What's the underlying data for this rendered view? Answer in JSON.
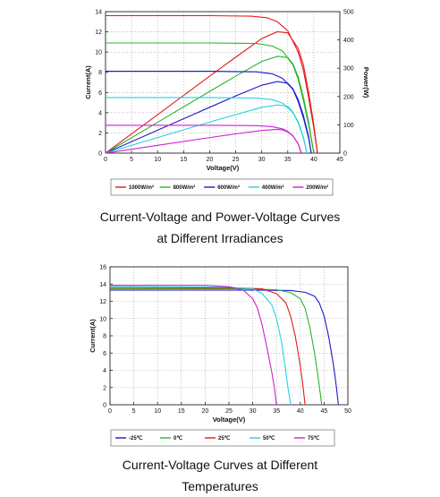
{
  "captions": {
    "chart1_line1": "Current-Voltage and Power-Voltage Curves",
    "chart1_line2": "at Different Irradiances",
    "chart2_line1": "Current-Voltage Curves at Different",
    "chart2_line2": "Temperatures"
  },
  "chart_data": [
    {
      "type": "line",
      "title": "",
      "xlabel": "Voltage(V)",
      "ylabel": "Current(A)",
      "y2label": "Power(W)",
      "xlim": [
        0,
        45
      ],
      "ylim": [
        0,
        14
      ],
      "y2lim": [
        0,
        500
      ],
      "xticks": [
        0,
        5,
        10,
        15,
        20,
        25,
        30,
        35,
        40,
        45
      ],
      "yticks": [
        0,
        2,
        4,
        6,
        8,
        10,
        12,
        14
      ],
      "y2ticks": [
        0,
        100,
        200,
        300,
        400,
        500
      ],
      "grid": true,
      "legend_position": "bottom",
      "series": [
        {
          "name": "1000W/m²",
          "color": "#e31a1c",
          "iv": [
            [
              0,
              13.6
            ],
            [
              20,
              13.6
            ],
            [
              28,
              13.55
            ],
            [
              31,
              13.4
            ],
            [
              33,
              13.0
            ],
            [
              35,
              12.1
            ],
            [
              37,
              10.0
            ],
            [
              38,
              8.2
            ],
            [
              39,
              5.5
            ],
            [
              40,
              2.5
            ],
            [
              40.7,
              0
            ]
          ],
          "pv": [
            [
              0,
              0
            ],
            [
              10,
              136
            ],
            [
              20,
              272
            ],
            [
              25,
              339
            ],
            [
              30,
              405
            ],
            [
              33,
              429
            ],
            [
              35,
              425
            ],
            [
              37,
              370
            ],
            [
              38,
              312
            ],
            [
              39,
              215
            ],
            [
              40,
              100
            ],
            [
              40.7,
              0
            ]
          ]
        },
        {
          "name": "800W/m²",
          "color": "#2cb52c",
          "iv": [
            [
              0,
              10.9
            ],
            [
              20,
              10.9
            ],
            [
              29,
              10.85
            ],
            [
              32,
              10.6
            ],
            [
              34,
              10.1
            ],
            [
              36,
              8.7
            ],
            [
              37,
              7.3
            ],
            [
              38,
              5.2
            ],
            [
              39,
              2.8
            ],
            [
              40,
              0
            ]
          ],
          "pv": [
            [
              0,
              0
            ],
            [
              10,
              109
            ],
            [
              20,
              218
            ],
            [
              25,
              272
            ],
            [
              30,
              324
            ],
            [
              33,
              342
            ],
            [
              35,
              338
            ],
            [
              36,
              315
            ],
            [
              37,
              270
            ],
            [
              38,
              198
            ],
            [
              39,
              110
            ],
            [
              40,
              0
            ]
          ]
        },
        {
          "name": "600W/m²",
          "color": "#1a1acc",
          "iv": [
            [
              0,
              8.1
            ],
            [
              20,
              8.1
            ],
            [
              29,
              8.05
            ],
            [
              32,
              7.85
            ],
            [
              34,
              7.4
            ],
            [
              36,
              6.3
            ],
            [
              37,
              5.1
            ],
            [
              38,
              3.5
            ],
            [
              39,
              1.5
            ],
            [
              39.5,
              0
            ]
          ],
          "pv": [
            [
              0,
              0
            ],
            [
              10,
              81
            ],
            [
              20,
              162
            ],
            [
              25,
              202
            ],
            [
              30,
              240
            ],
            [
              33,
              253
            ],
            [
              35,
              247
            ],
            [
              36,
              227
            ],
            [
              37,
              189
            ],
            [
              38,
              133
            ],
            [
              39,
              59
            ],
            [
              39.5,
              0
            ]
          ]
        },
        {
          "name": "400W/m²",
          "color": "#22d3e0",
          "iv": [
            [
              0,
              5.5
            ],
            [
              20,
              5.5
            ],
            [
              29,
              5.45
            ],
            [
              32,
              5.3
            ],
            [
              34,
              4.95
            ],
            [
              36,
              4.0
            ],
            [
              37,
              3.0
            ],
            [
              38,
              1.5
            ],
            [
              38.7,
              0
            ]
          ],
          "pv": [
            [
              0,
              0
            ],
            [
              10,
              55
            ],
            [
              20,
              110
            ],
            [
              25,
              136
            ],
            [
              30,
              162
            ],
            [
              33,
              170
            ],
            [
              35,
              166
            ],
            [
              36,
              144
            ],
            [
              37,
              111
            ],
            [
              38,
              57
            ],
            [
              38.7,
              0
            ]
          ]
        },
        {
          "name": "200W/m²",
          "color": "#d21fd2",
          "iv": [
            [
              0,
              2.75
            ],
            [
              20,
              2.75
            ],
            [
              29,
              2.72
            ],
            [
              32,
              2.62
            ],
            [
              34,
              2.4
            ],
            [
              35,
              2.15
            ],
            [
              36,
              1.7
            ],
            [
              37,
              0.9
            ],
            [
              37.6,
              0
            ]
          ],
          "pv": [
            [
              0,
              0
            ],
            [
              10,
              27.5
            ],
            [
              20,
              55
            ],
            [
              25,
              68
            ],
            [
              30,
              80
            ],
            [
              33,
              84
            ],
            [
              34,
              82
            ],
            [
              35,
              75
            ],
            [
              36,
              61
            ],
            [
              37,
              33
            ],
            [
              37.6,
              0
            ]
          ]
        }
      ]
    },
    {
      "type": "line",
      "title": "",
      "xlabel": "Voltage(V)",
      "ylabel": "Current(A)",
      "xlim": [
        0,
        50
      ],
      "ylim": [
        0,
        16
      ],
      "xticks": [
        0,
        5,
        10,
        15,
        20,
        25,
        30,
        35,
        40,
        45,
        50
      ],
      "yticks": [
        0,
        2,
        4,
        6,
        8,
        10,
        12,
        14,
        16
      ],
      "grid": true,
      "legend_position": "bottom",
      "series": [
        {
          "name": "-25℃",
          "color": "#1a1acc",
          "iv": [
            [
              0,
              13.3
            ],
            [
              30,
              13.3
            ],
            [
              38,
              13.25
            ],
            [
              41,
              13.05
            ],
            [
              43,
              12.6
            ],
            [
              44,
              11.8
            ],
            [
              45,
              10.3
            ],
            [
              46,
              7.8
            ],
            [
              47,
              4.5
            ],
            [
              47.6,
              2.0
            ],
            [
              48,
              0
            ]
          ]
        },
        {
          "name": "0℃",
          "color": "#2cb52c",
          "iv": [
            [
              0,
              13.45
            ],
            [
              28,
              13.45
            ],
            [
              35,
              13.35
            ],
            [
              38,
              13.0
            ],
            [
              40,
              12.3
            ],
            [
              41,
              11.2
            ],
            [
              42,
              9.0
            ],
            [
              43,
              6.0
            ],
            [
              43.8,
              3.0
            ],
            [
              44.5,
              0
            ]
          ]
        },
        {
          "name": "25℃",
          "color": "#e31a1c",
          "iv": [
            [
              0,
              13.6
            ],
            [
              27,
              13.55
            ],
            [
              32,
              13.45
            ],
            [
              35,
              12.9
            ],
            [
              37,
              11.8
            ],
            [
              38,
              10.2
            ],
            [
              39,
              7.8
            ],
            [
              40,
              4.5
            ],
            [
              40.6,
              2.0
            ],
            [
              41,
              0
            ]
          ]
        },
        {
          "name": "50℃",
          "color": "#22d3e0",
          "iv": [
            [
              0,
              13.7
            ],
            [
              25,
              13.65
            ],
            [
              30,
              13.45
            ],
            [
              32,
              12.9
            ],
            [
              34,
              11.6
            ],
            [
              35,
              10.0
            ],
            [
              36,
              7.5
            ],
            [
              36.8,
              4.5
            ],
            [
              37.4,
              2.0
            ],
            [
              38,
              0
            ]
          ]
        },
        {
          "name": "75℃",
          "color": "#d21fd2",
          "iv": [
            [
              0,
              13.85
            ],
            [
              20,
              13.85
            ],
            [
              25,
              13.7
            ],
            [
              28,
              13.3
            ],
            [
              30,
              12.3
            ],
            [
              31,
              11.2
            ],
            [
              32,
              9.2
            ],
            [
              33,
              6.6
            ],
            [
              34,
              3.8
            ],
            [
              34.6,
              1.8
            ],
            [
              35,
              0
            ]
          ]
        }
      ]
    }
  ]
}
